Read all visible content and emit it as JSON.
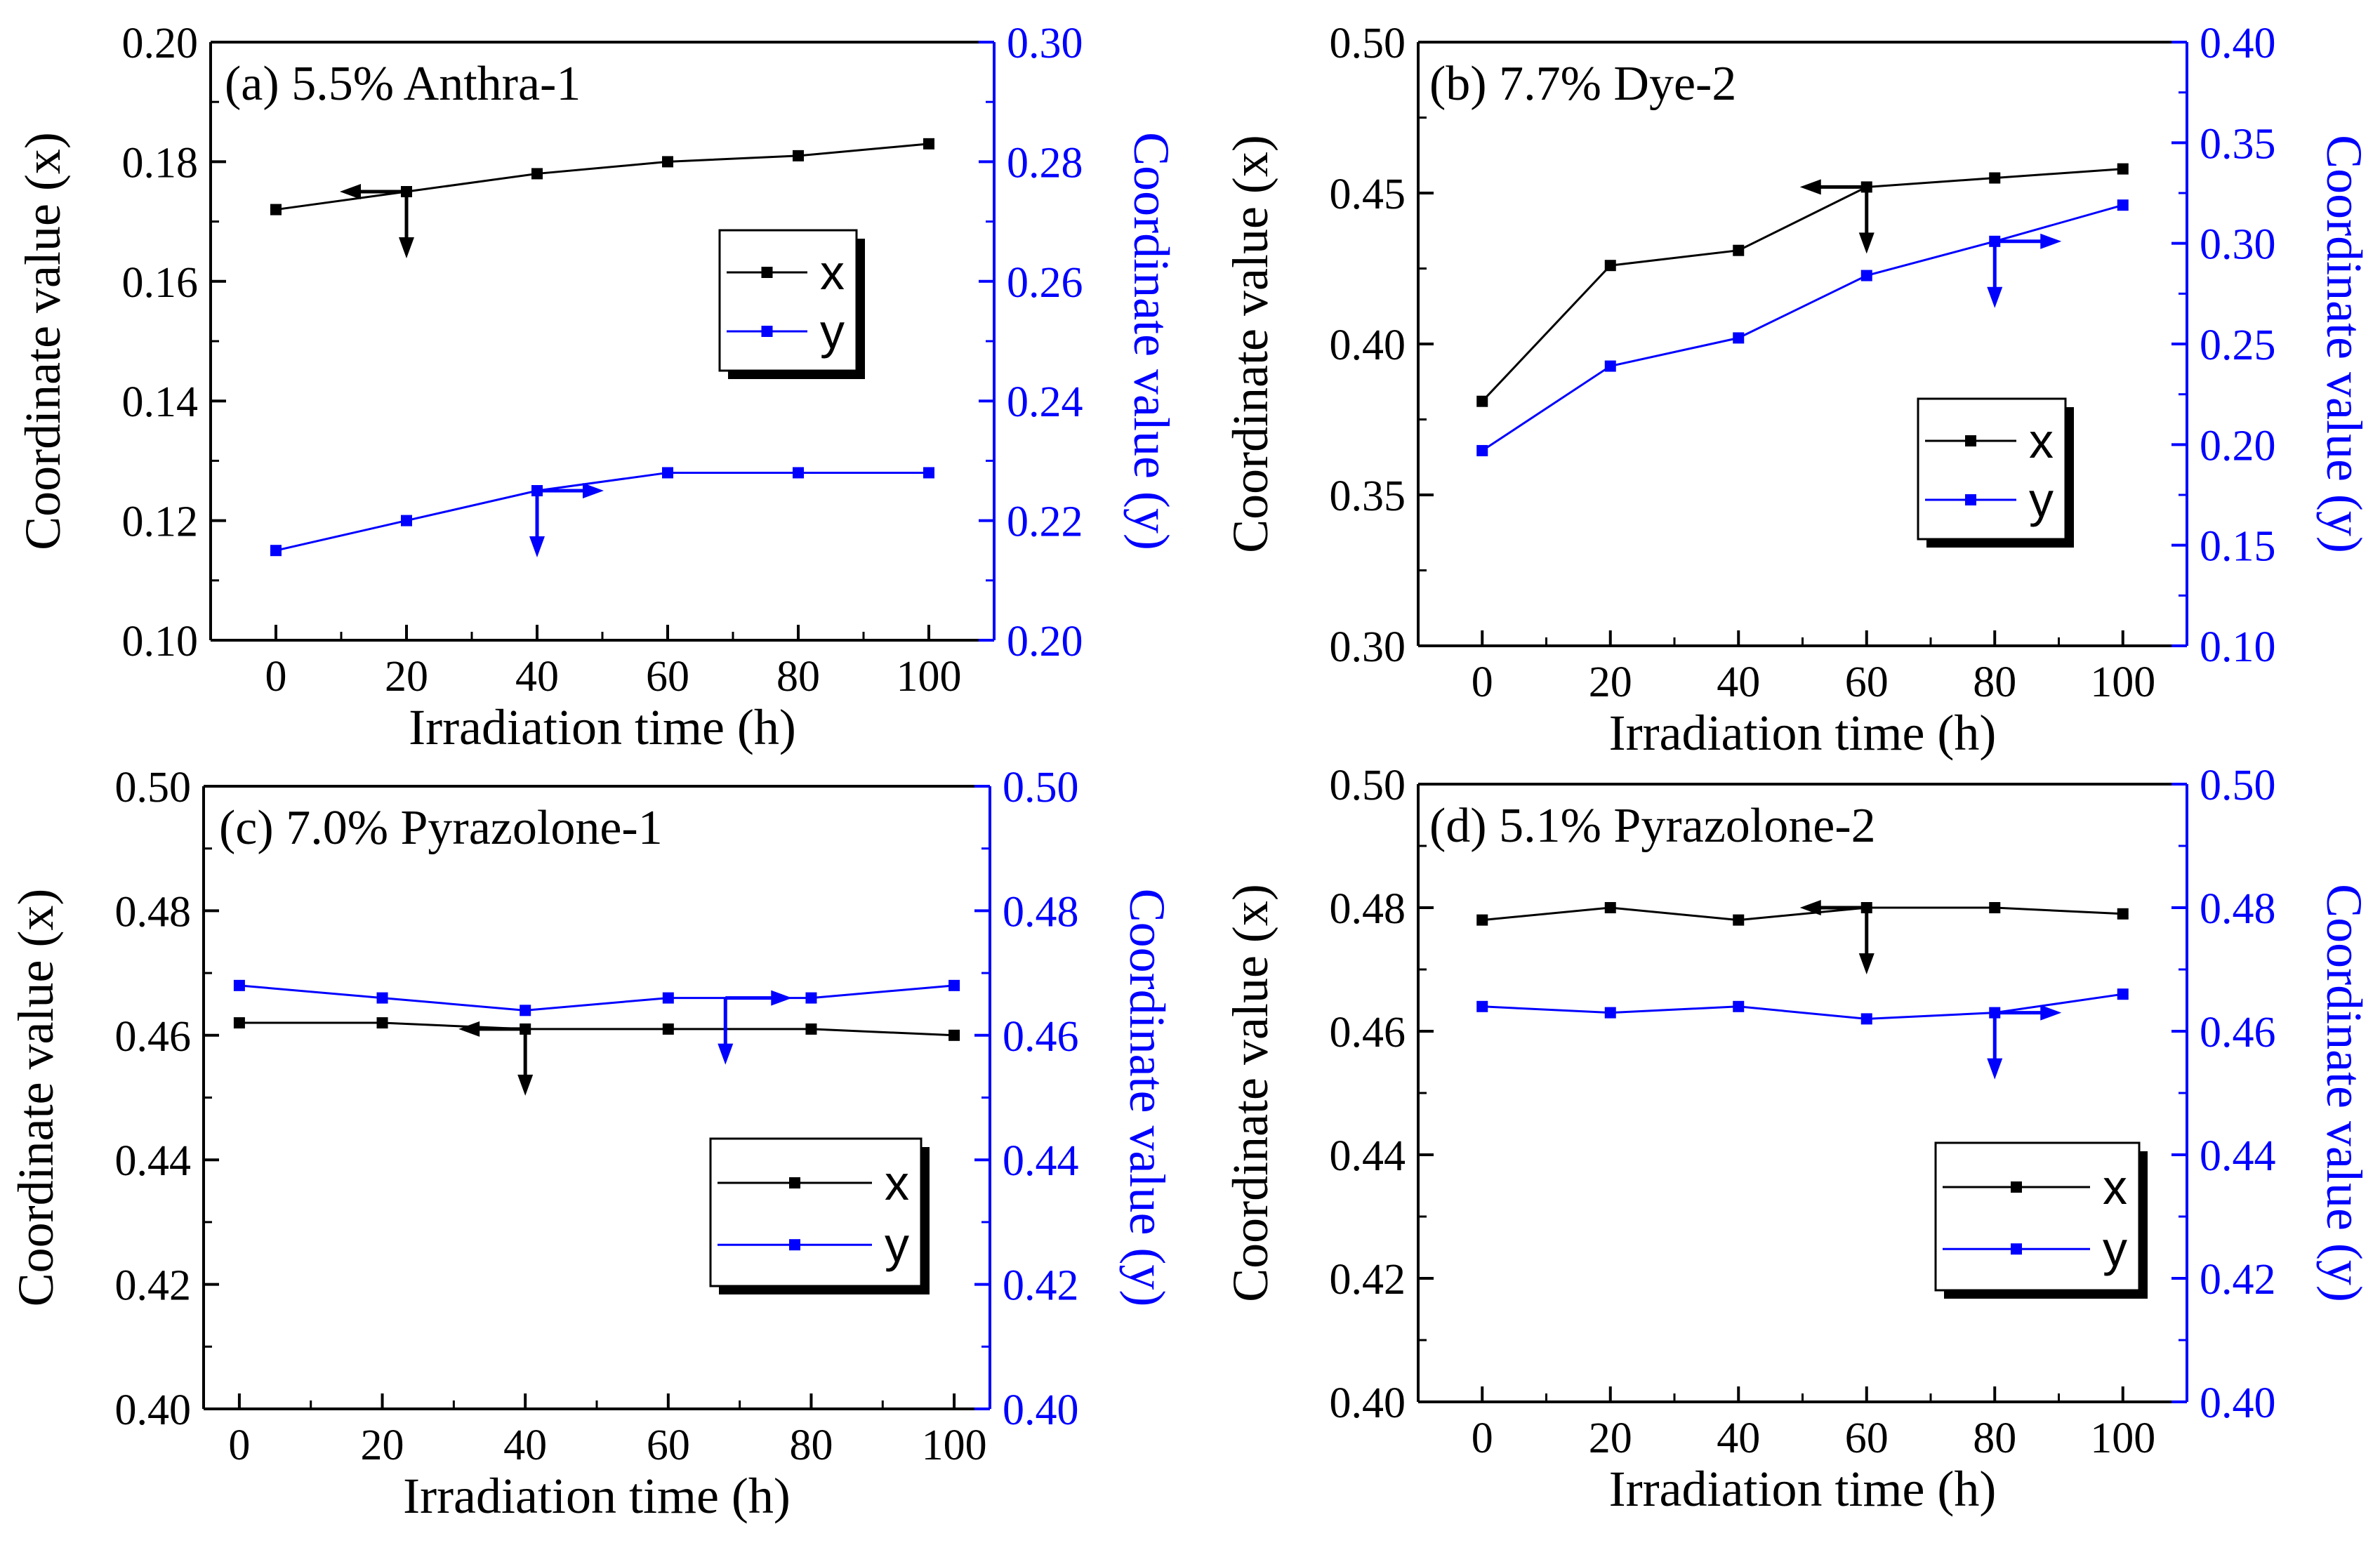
{
  "chart_data": [
    {
      "type": "line",
      "title": "(a) 5.5% Anthra-1",
      "xlabel": "Irradiation time (h)",
      "ylabel_left": "Coordinate value (x)",
      "ylabel_right": "Coordinate value (y)",
      "x": [
        0,
        20,
        40,
        60,
        80,
        100
      ],
      "xlim": [
        -10,
        110
      ],
      "xticks": [
        "0",
        "20",
        "40",
        "60",
        "80",
        "100"
      ],
      "ylim_left": [
        0.1,
        0.2
      ],
      "yticks_left": [
        "0.10",
        "0.12",
        "0.14",
        "0.16",
        "0.18",
        "0.20"
      ],
      "ylim_right": [
        0.2,
        0.3
      ],
      "yticks_right": [
        "0.20",
        "0.22",
        "0.24",
        "0.26",
        "0.28",
        "0.30"
      ],
      "series": [
        {
          "name": "x",
          "axis": "left",
          "color": "#000000",
          "values": [
            0.172,
            0.175,
            0.178,
            0.18,
            0.181,
            0.183
          ]
        },
        {
          "name": "y",
          "axis": "right",
          "color": "#0000ff",
          "values": [
            0.215,
            0.22,
            0.225,
            0.228,
            0.228,
            0.228
          ]
        }
      ],
      "arrows": [
        {
          "series": "x",
          "x": 20,
          "direction": "left"
        },
        {
          "series": "y",
          "x": 40,
          "direction": "right"
        }
      ],
      "legend": "center-right"
    },
    {
      "type": "line",
      "title": "(b) 7.7% Dye-2",
      "xlabel": "Irradiation time (h)",
      "ylabel_left": "Coordinate value (x)",
      "ylabel_right": "Coordinate value (y)",
      "x": [
        0,
        20,
        40,
        60,
        80,
        100
      ],
      "xlim": [
        -10,
        110
      ],
      "xticks": [
        "0",
        "20",
        "40",
        "60",
        "80",
        "100"
      ],
      "ylim_left": [
        0.3,
        0.5
      ],
      "yticks_left": [
        "0.30",
        "0.35",
        "0.40",
        "0.45",
        "0.50"
      ],
      "ylim_right": [
        0.1,
        0.4
      ],
      "yticks_right": [
        "0.10",
        "0.15",
        "0.20",
        "0.25",
        "0.30",
        "0.35",
        "0.40"
      ],
      "series": [
        {
          "name": "x",
          "axis": "left",
          "color": "#000000",
          "values": [
            0.381,
            0.426,
            0.431,
            0.452,
            0.455,
            0.458
          ]
        },
        {
          "name": "y",
          "axis": "right",
          "color": "#0000ff",
          "values": [
            0.197,
            0.239,
            0.253,
            0.284,
            0.301,
            0.319
          ]
        }
      ],
      "arrows": [
        {
          "series": "x",
          "x": 60,
          "direction": "left"
        },
        {
          "series": "y",
          "x": 80,
          "direction": "right"
        }
      ],
      "legend": "lower-right"
    },
    {
      "type": "line",
      "title": "(c) 7.0% Pyrazolone-1",
      "xlabel": "Irradiation time (h)",
      "ylabel_left": "Coordinate value (x)",
      "ylabel_right": "Coordinate value (y)",
      "x": [
        0,
        20,
        40,
        60,
        80,
        100
      ],
      "xlim": [
        -5,
        105
      ],
      "xticks": [
        "0",
        "20",
        "40",
        "60",
        "80",
        "100"
      ],
      "ylim_left": [
        0.4,
        0.5
      ],
      "yticks_left": [
        "0.40",
        "0.42",
        "0.44",
        "0.46",
        "0.48",
        "0.50"
      ],
      "ylim_right": [
        0.4,
        0.5
      ],
      "yticks_right": [
        "0.40",
        "0.42",
        "0.44",
        "0.46",
        "0.48",
        "0.50"
      ],
      "series": [
        {
          "name": "x",
          "axis": "left",
          "color": "#000000",
          "values": [
            0.462,
            0.462,
            0.461,
            0.461,
            0.461,
            0.46
          ]
        },
        {
          "name": "y",
          "axis": "right",
          "color": "#0000ff",
          "values": [
            0.468,
            0.466,
            0.464,
            0.466,
            0.466,
            0.468
          ]
        }
      ],
      "arrows": [
        {
          "series": "x",
          "x": 40,
          "direction": "left"
        },
        {
          "series": "y",
          "x": 68,
          "direction": "right"
        }
      ],
      "legend": "lower-right"
    },
    {
      "type": "line",
      "title": "(d) 5.1% Pyrazolone-2",
      "xlabel": "Irradiation time (h)",
      "ylabel_left": "Coordinate value (x)",
      "ylabel_right": "Coordinate value (y)",
      "x": [
        0,
        20,
        40,
        60,
        80,
        100
      ],
      "xlim": [
        -10,
        110
      ],
      "xticks": [
        "0",
        "20",
        "40",
        "60",
        "80",
        "100"
      ],
      "ylim_left": [
        0.4,
        0.5
      ],
      "yticks_left": [
        "0.40",
        "0.42",
        "0.44",
        "0.46",
        "0.48",
        "0.50"
      ],
      "ylim_right": [
        0.4,
        0.5
      ],
      "yticks_right": [
        "0.40",
        "0.42",
        "0.44",
        "0.46",
        "0.48",
        "0.50"
      ],
      "series": [
        {
          "name": "x",
          "axis": "left",
          "color": "#000000",
          "values": [
            0.478,
            0.48,
            0.478,
            0.48,
            0.48,
            0.479
          ]
        },
        {
          "name": "y",
          "axis": "right",
          "color": "#0000ff",
          "values": [
            0.464,
            0.463,
            0.464,
            0.462,
            0.463,
            0.466
          ]
        }
      ],
      "arrows": [
        {
          "series": "x",
          "x": 60,
          "direction": "left"
        },
        {
          "series": "y",
          "x": 80,
          "direction": "right"
        }
      ],
      "legend": "lower-right"
    }
  ]
}
